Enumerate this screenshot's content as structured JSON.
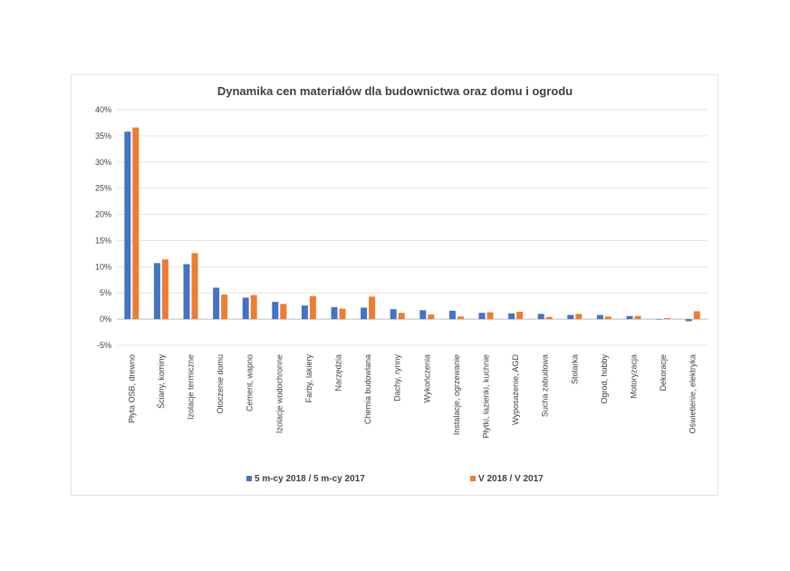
{
  "chart_data": {
    "type": "bar",
    "title": "Dynamika cen materiałów dla budownictwa oraz domu i ogrodu",
    "xlabel": "",
    "ylabel": "",
    "ylim": [
      -5,
      40
    ],
    "yticks": [
      -5,
      0,
      5,
      10,
      15,
      20,
      25,
      30,
      35,
      40
    ],
    "ytick_labels": [
      "-5%",
      "0%",
      "5%",
      "10%",
      "15%",
      "20%",
      "25%",
      "30%",
      "35%",
      "40%"
    ],
    "grid": true,
    "legend_position": "bottom",
    "categories": [
      "Płyta OSB, drewno",
      "Ściany, kominy",
      "Izolacje termiczne",
      "Otoczenie domu",
      "Cement, wapno",
      "Izolacje wodochronne",
      "Farby, lakiery",
      "Narzędzia",
      "Chemia budowlana",
      "Dachy, rynny",
      "Wykończenia",
      "Instalacje, ogrzewanie",
      "Płytki, łazienki, kuchnie",
      "Wyposażenie, AGD",
      "Sucha zabudowa",
      "Stolarka",
      "Ogród, hobby",
      "Motoryzacja",
      "Dekoracje",
      "Oświetlenie, elektryka"
    ],
    "series": [
      {
        "name": "5 m-cy 2018 / 5 m-cy 2017",
        "color": "#4472c4",
        "values": [
          35.8,
          10.7,
          10.5,
          6.0,
          4.1,
          3.3,
          2.6,
          2.3,
          2.2,
          1.9,
          1.7,
          1.6,
          1.2,
          1.1,
          1.0,
          0.8,
          0.8,
          0.6,
          0.0,
          -0.4
        ]
      },
      {
        "name": "V 2018 / V 2017",
        "color": "#ed7d31",
        "values": [
          36.6,
          11.4,
          12.6,
          4.7,
          4.6,
          2.9,
          4.4,
          2.0,
          4.3,
          1.2,
          0.9,
          0.5,
          1.3,
          1.4,
          0.4,
          1.0,
          0.5,
          0.6,
          0.2,
          1.5
        ]
      }
    ]
  }
}
